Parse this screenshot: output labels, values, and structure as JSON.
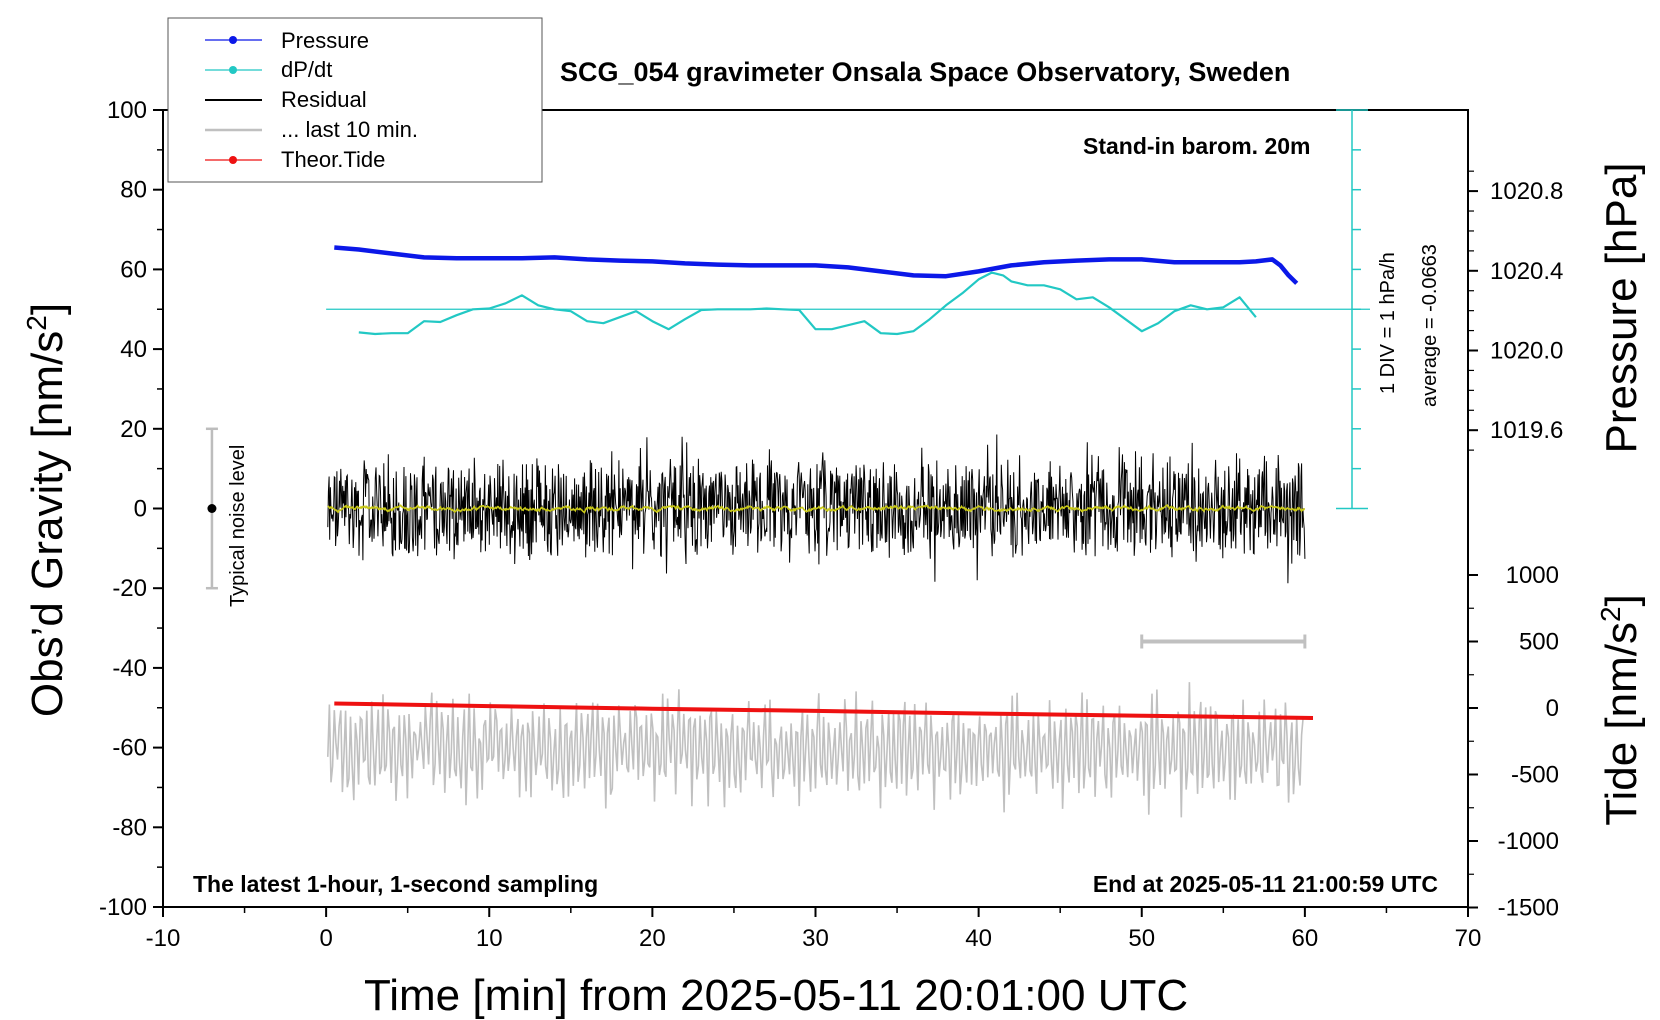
{
  "chart_data": {
    "type": "line",
    "title": "SCG_054 gravimeter Onsala Space Observatory, Sweden",
    "xlabel": "Time [min] from 2025-05-11 20:01:00 UTC",
    "ylabel_left": "Obs’d Gravity [nm/s",
    "ylabel_left_sup": "2",
    "ylabel_left_close": "]",
    "ylabel_right_pressure": "Pressure [hPa]",
    "ylabel_right_tide": "Tide [nm/s",
    "ylabel_right_tide_sup": "2",
    "ylabel_right_tide_close": "]",
    "xlim": [
      -10,
      70
    ],
    "ylim_left": [
      -100,
      100
    ],
    "x_ticks": [
      "-10",
      "0",
      "10",
      "20",
      "30",
      "40",
      "50",
      "60",
      "70"
    ],
    "y_ticks_left": [
      "100",
      "80",
      "60",
      "40",
      "20",
      "0",
      "-20",
      "-40",
      "-60",
      "-80",
      "-100"
    ],
    "pressure_ticks": [
      "1020.8",
      "1020.4",
      "1020.0",
      "1019.6"
    ],
    "tide_ticks": [
      "1000",
      "500",
      "0",
      "-500",
      "-1000",
      "-1500"
    ],
    "legend": [
      "Pressure",
      "dP/dt",
      "Residual",
      "... last 10 min.",
      "Theor.Tide"
    ],
    "annotations": {
      "barometer": "Stand-in barom. 20m",
      "scale": "1 DIV = 1 hPa/h",
      "average": "average = -0.0663",
      "noise": "Typical noise level",
      "sampling": "The latest 1-hour, 1-second sampling",
      "end": "End at 2025-05-11 21:00:59 UTC"
    },
    "colors": {
      "pressure": "#0b18e8",
      "dpdt": "#22c8c4",
      "residual": "#000000",
      "last10": "#c0c0c0",
      "tide": "#ee1111",
      "residual_smooth": "#c8c817"
    },
    "series": [
      {
        "name": "Pressure",
        "unit": "left-axis nm/s2 equivalent",
        "x": [
          0.5,
          2,
          4,
          6,
          8,
          10,
          12,
          14,
          16,
          18,
          20,
          22,
          24,
          26,
          28,
          30,
          32,
          34,
          36,
          38,
          40,
          42,
          44,
          46,
          48,
          50,
          52,
          54,
          56,
          57,
          58,
          58.5,
          59,
          59.5
        ],
        "y": [
          65.5,
          65,
          64,
          63,
          62.8,
          62.8,
          62.8,
          63,
          62.5,
          62.2,
          62,
          61.5,
          61.2,
          61,
          61,
          61,
          60.5,
          59.5,
          58.5,
          58.3,
          59.5,
          61,
          61.8,
          62.2,
          62.5,
          62.5,
          61.8,
          61.8,
          61.8,
          62,
          62.5,
          61,
          58.5,
          56.5
        ]
      },
      {
        "name": "dP/dt",
        "unit": "left-axis nm/s2 equivalent",
        "x": [
          2,
          3,
          4,
          5,
          6,
          7,
          8,
          9,
          10,
          11,
          12,
          13,
          14,
          15,
          16,
          17,
          18,
          19,
          20,
          21,
          22,
          23,
          24,
          25,
          26,
          27,
          28,
          29,
          30,
          31,
          32,
          33,
          34,
          35,
          36,
          37,
          38,
          39,
          40,
          40.8,
          41.5,
          42,
          43,
          44,
          45,
          46,
          47,
          48,
          49,
          50,
          51,
          52,
          53,
          54,
          55,
          56,
          57
        ],
        "y": [
          44.2,
          43.8,
          44,
          44,
          47,
          46.8,
          48.5,
          50,
          50.2,
          51.5,
          53.5,
          51,
          50,
          49.5,
          47,
          46.5,
          48,
          49.5,
          47,
          45,
          47.5,
          49.8,
          50,
          50,
          50,
          50.2,
          50,
          49.8,
          45,
          45,
          46,
          47,
          44,
          43.8,
          44.5,
          47.5,
          51,
          54,
          57.5,
          59.2,
          58.5,
          57,
          56,
          56,
          55,
          52.5,
          53,
          50.5,
          47.5,
          44.5,
          46.5,
          49.5,
          51,
          50,
          50.5,
          53,
          48
        ]
      },
      {
        "name": "Theor.Tide",
        "unit": "tide axis nm/s2",
        "x": [
          0.5,
          10,
          20,
          30,
          40,
          50,
          60.5
        ],
        "y": [
          34,
          14,
          -5,
          -22,
          -41,
          -58,
          -75
        ]
      },
      {
        "name": "Residual",
        "summary": "1-second residual gravity fluctuating about 0 nm/s2, roughly between -20 and +22",
        "x_range": [
          0,
          60
        ],
        "y_range": [
          -20,
          22
        ]
      },
      {
        "name": "... last 10 min.",
        "summary": "residual of the last 10 minutes repeated as a gray trace around -60 on the left axis",
        "x_range": [
          0,
          60
        ],
        "y_range": [
          -80,
          -39
        ]
      }
    ],
    "scale_bar_last10": {
      "x": [
        50,
        60
      ],
      "y_tide": 500
    },
    "noise_bar": {
      "x": -7,
      "y": [
        -20,
        20
      ]
    },
    "dpdt_zero_level": 50,
    "dpdt_scale_ticks_left": [
      0,
      10,
      20,
      30,
      40,
      50,
      60,
      70,
      80,
      90,
      100
    ]
  }
}
